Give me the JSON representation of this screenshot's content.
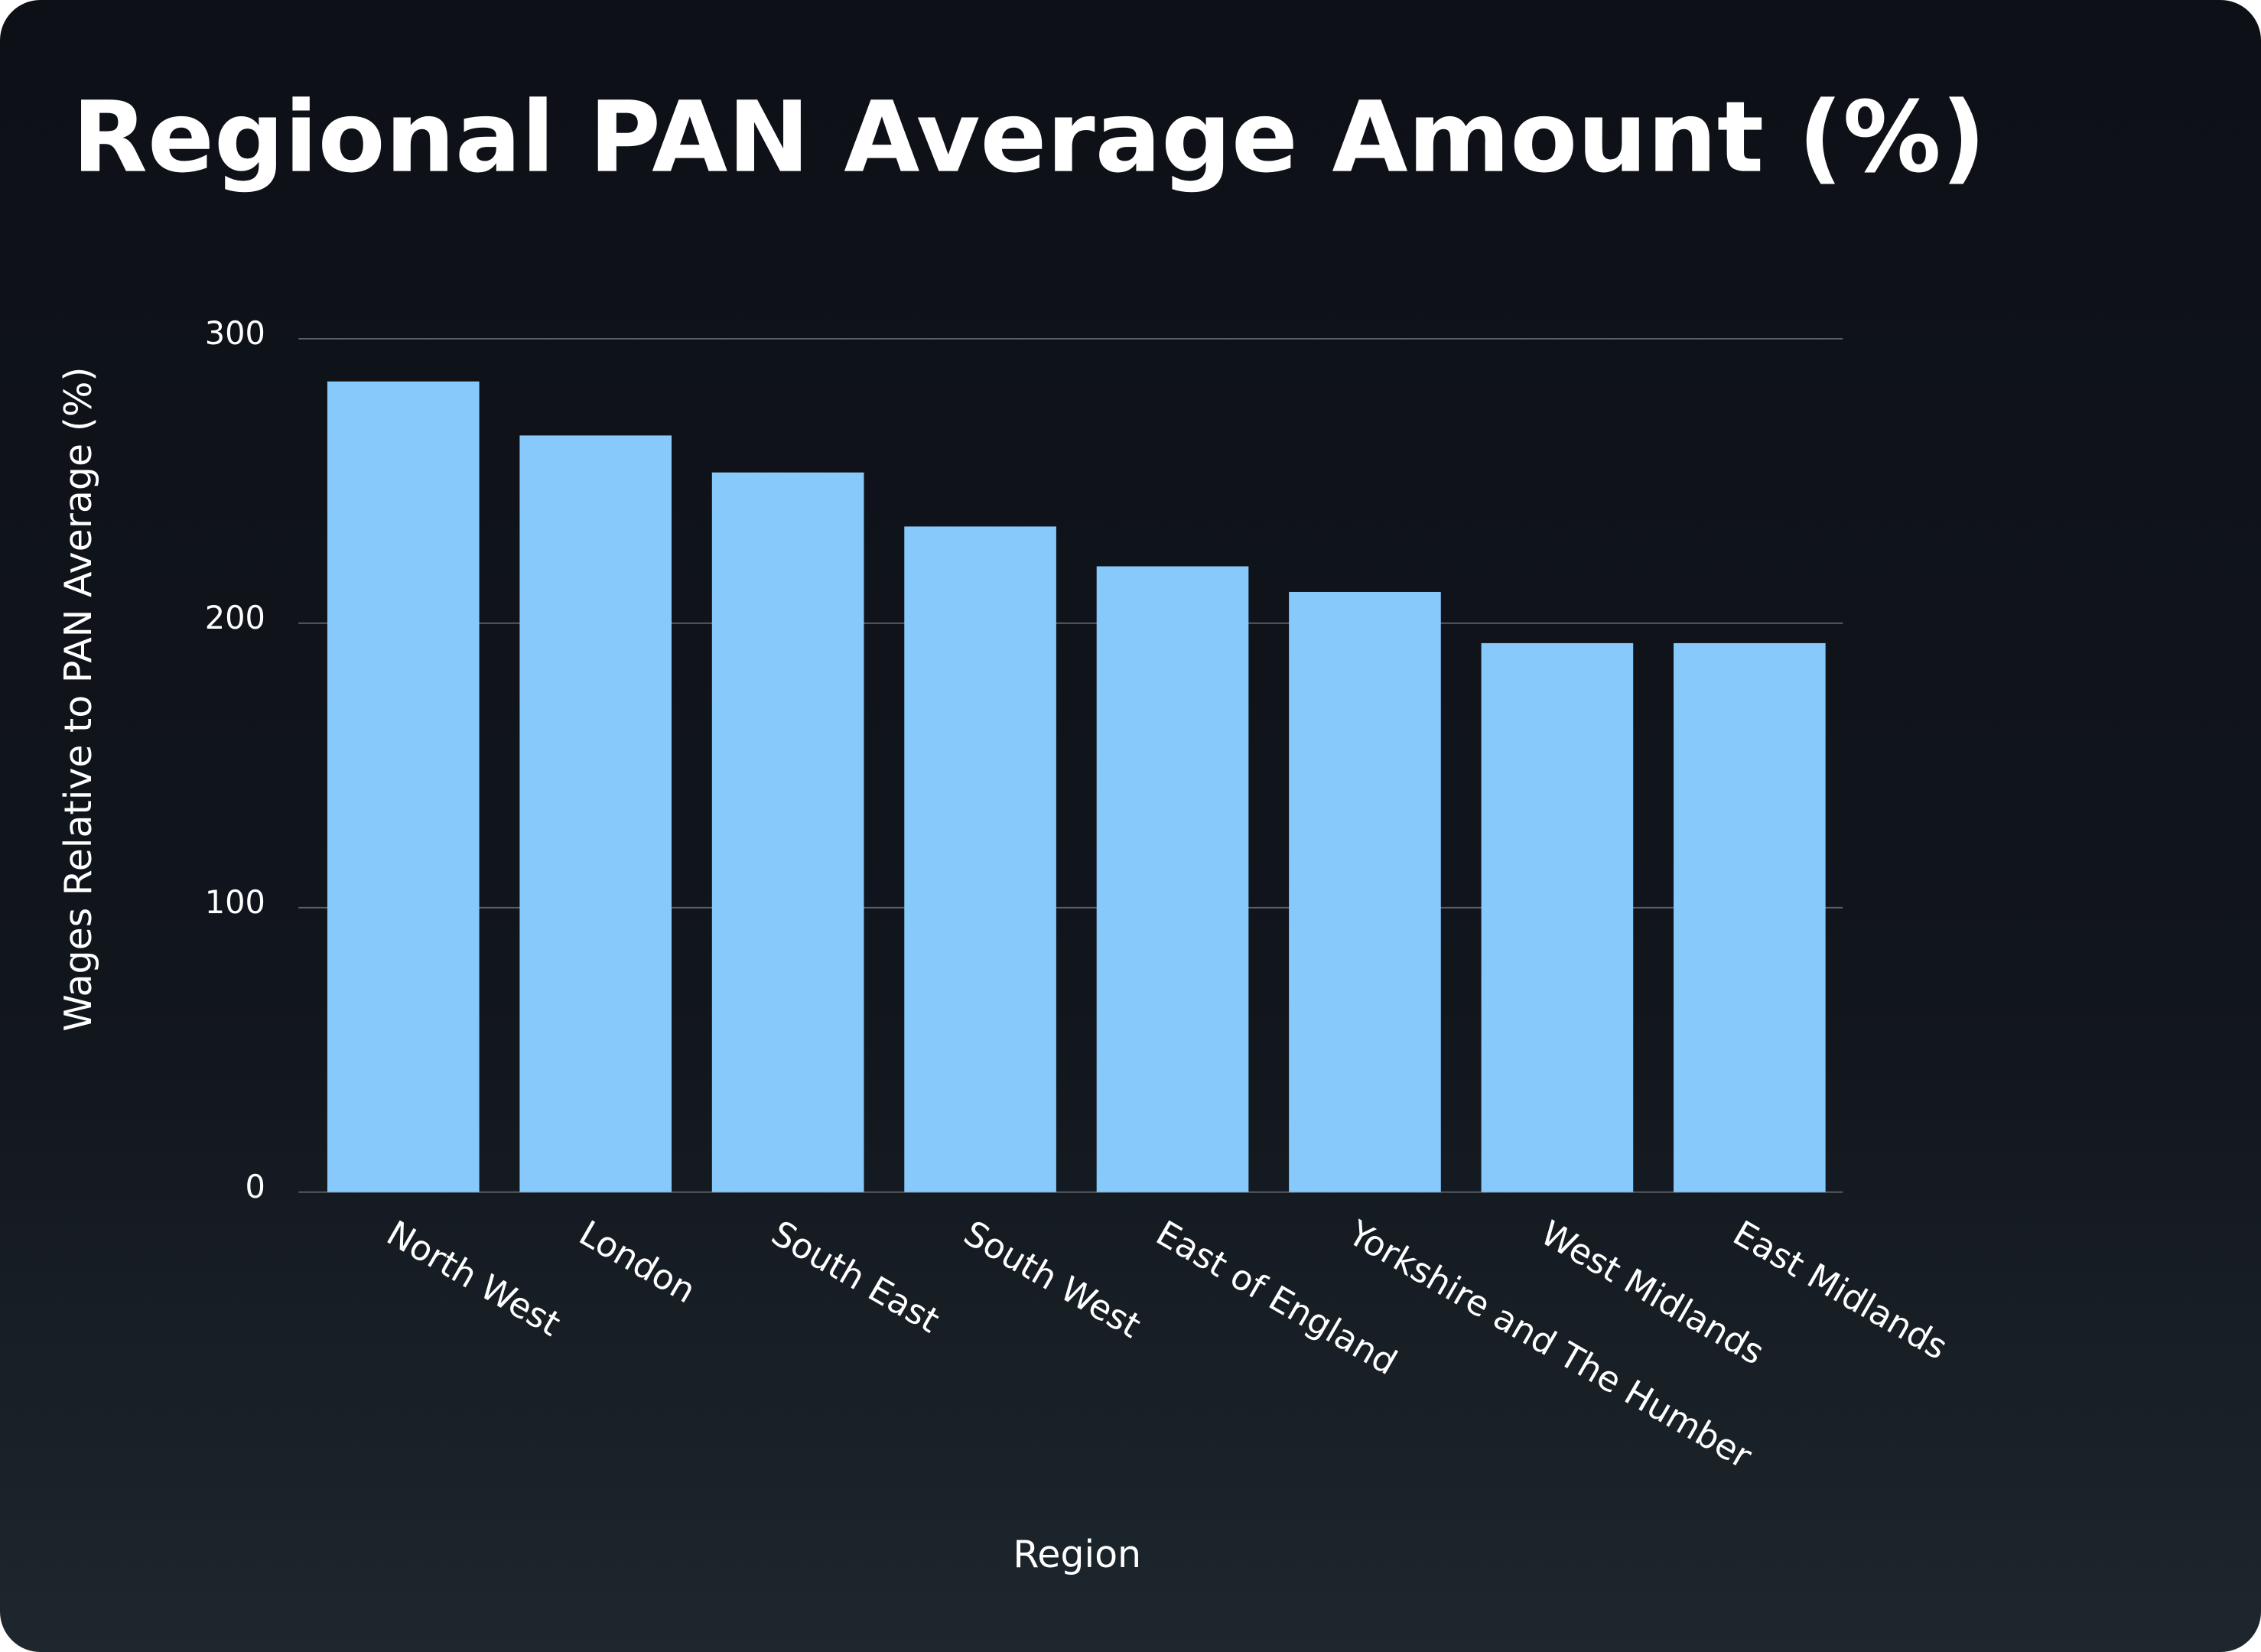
{
  "chart_data": {
    "type": "bar",
    "title": "Regional PAN Average Amount (%)",
    "x_label": "Region",
    "y_label": "Wages Relative to PAN Average (%)",
    "categories": [
      "North West",
      "London",
      "South East",
      "South West",
      "East of England",
      "Yorkshire and The Humber",
      "West Midlands",
      "East Midlands"
    ],
    "values": [
      285,
      266,
      253,
      234,
      220,
      211,
      193,
      193
    ],
    "color": "#87c9fb",
    "ylim": [
      0,
      300
    ],
    "yticks": [
      0,
      100,
      200,
      300
    ],
    "grid": true
  }
}
